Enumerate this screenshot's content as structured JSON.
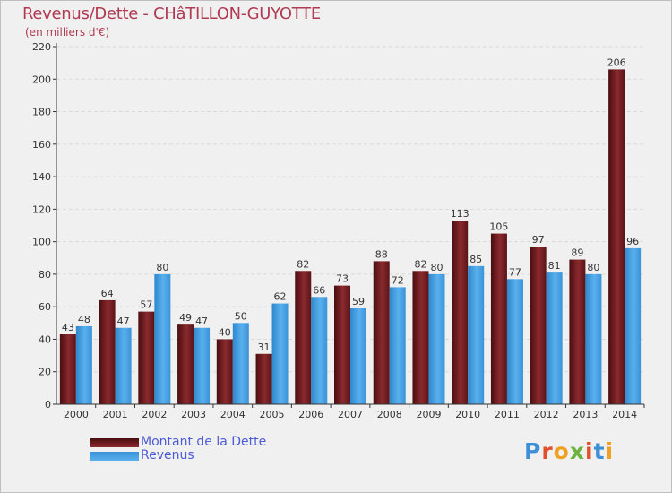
{
  "title": "Revenus/Dette - CHâTILLON-GUYOTTE",
  "subtitle": "(en milliers d'€)",
  "logo": "Proxiti",
  "colors": {
    "dette": "#7a1e24",
    "revenus": "#3d9be0",
    "title": "#b03a52",
    "legend_text": "#4d5ad6"
  },
  "chart_data": {
    "type": "bar",
    "categories": [
      "2000",
      "2001",
      "2002",
      "2003",
      "2004",
      "2005",
      "2006",
      "2007",
      "2008",
      "2009",
      "2010",
      "2011",
      "2012",
      "2013",
      "2014"
    ],
    "series": [
      {
        "name": "Montant de la Dette",
        "values": [
          43,
          64,
          57,
          49,
          40,
          31,
          82,
          73,
          88,
          82,
          113,
          105,
          97,
          89,
          206
        ]
      },
      {
        "name": "Revenus",
        "values": [
          48,
          47,
          80,
          47,
          50,
          62,
          66,
          59,
          72,
          80,
          85,
          77,
          81,
          80,
          96
        ]
      }
    ],
    "ylim": [
      0,
      220
    ],
    "yticks": [
      0,
      20,
      40,
      60,
      80,
      100,
      120,
      140,
      160,
      180,
      200,
      220
    ],
    "grid": true,
    "legend": "bottom-left"
  }
}
